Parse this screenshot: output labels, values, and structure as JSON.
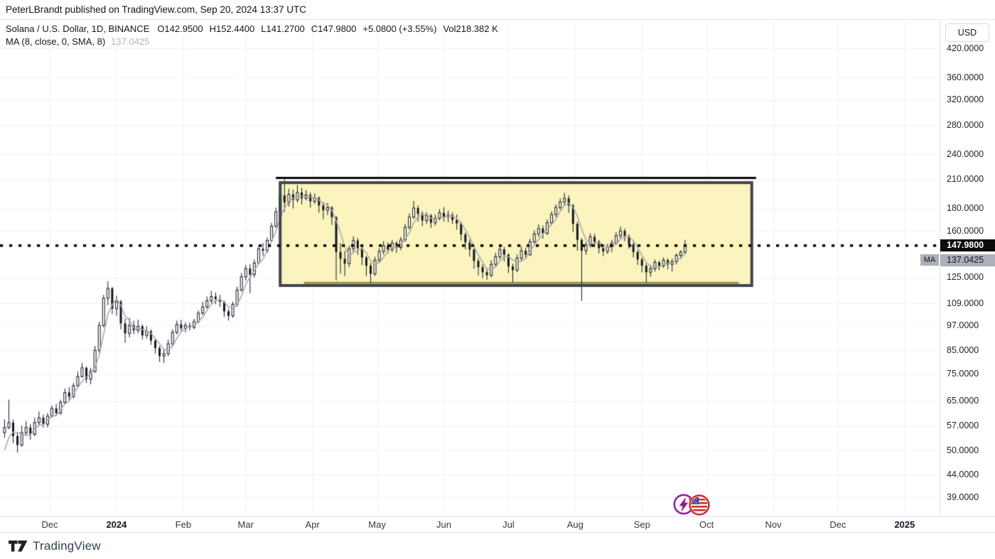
{
  "header": {
    "published_line": "PeterLBrandt published on TradingView.com, Sep 20, 2024 13:37 UTC"
  },
  "legend": {
    "symbol_title": "Solana / U.S. Dollar, 1D, BINANCE",
    "values": [
      "O142.9500",
      "H152.4400",
      "L141.2700",
      "C147.9800",
      "+5.0800 (+3.55%)",
      "Vol218.382 K"
    ],
    "indicator_label": "MA (8, close, 0, SMA, 8)",
    "indicator_value": "137.0425"
  },
  "price_axis": {
    "currency_button": "USD",
    "labels": [
      "420.0000",
      "360.0000",
      "320.0000",
      "280.0000",
      "240.0000",
      "210.0000",
      "180.0000",
      "160.0000",
      "125.0000",
      "109.0000",
      "97.0000",
      "85.0000",
      "75.0000",
      "65.0000",
      "57.0000",
      "50.0000",
      "44.0000",
      "39.0000"
    ],
    "label_values": [
      420,
      360,
      320,
      280,
      240,
      210,
      180,
      160,
      125,
      109,
      97,
      85,
      75,
      65,
      57,
      50,
      44,
      39
    ],
    "last_price_badge": {
      "text": "147.9800",
      "price": 147.98
    },
    "ma_badge": {
      "tag": "MA",
      "text": "137.0425",
      "price": 137.0425
    }
  },
  "time_axis": {
    "ticks": [
      {
        "label": "Dec",
        "day": 0,
        "bold": false
      },
      {
        "label": "2024",
        "day": 31,
        "bold": true
      },
      {
        "label": "Feb",
        "day": 62,
        "bold": false
      },
      {
        "label": "Mar",
        "day": 91,
        "bold": false
      },
      {
        "label": "Apr",
        "day": 122,
        "bold": false
      },
      {
        "label": "May",
        "day": 152,
        "bold": false
      },
      {
        "label": "Jun",
        "day": 183,
        "bold": false
      },
      {
        "label": "Jul",
        "day": 213,
        "bold": false
      },
      {
        "label": "Aug",
        "day": 244,
        "bold": false
      },
      {
        "label": "Sep",
        "day": 275,
        "bold": false
      },
      {
        "label": "Oct",
        "day": 305,
        "bold": false
      },
      {
        "label": "Nov",
        "day": 336,
        "bold": false
      },
      {
        "label": "Dec",
        "day": 366,
        "bold": false
      },
      {
        "label": "2025",
        "day": 397,
        "bold": true
      }
    ]
  },
  "footer": {
    "brand": "TradingView"
  },
  "chart_data": {
    "type": "candlestick",
    "title": "Solana / U.S. Dollar, 1D, BINANCE",
    "scale": "log",
    "price_axis_range": [
      37,
      450
    ],
    "grid": true,
    "last_bar": {
      "open": 142.95,
      "high": 152.44,
      "low": 141.27,
      "close": 147.98,
      "change": "+5.0800",
      "change_pct": "+3.55%",
      "volume": "218.382 K"
    },
    "moving_average": {
      "length": 8,
      "source": "close",
      "offset": 0,
      "type": "SMA",
      "current_value": 137.0425,
      "seed_closes": [
        40,
        44,
        48,
        52
      ]
    },
    "bars_per_point_days": 2,
    "candles": [
      [
        55,
        59,
        53.5,
        56.5
      ],
      [
        56.5,
        65.5,
        56,
        58
      ],
      [
        58,
        59,
        52,
        54
      ],
      [
        54,
        55,
        49.5,
        51.5
      ],
      [
        51.5,
        57,
        51,
        55
      ],
      [
        55,
        58.5,
        54,
        56.5
      ],
      [
        56.5,
        57.5,
        53,
        54.5
      ],
      [
        54.5,
        59.5,
        54,
        58
      ],
      [
        58,
        61.5,
        57,
        59.5
      ],
      [
        59.5,
        60.5,
        56.5,
        57.5
      ],
      [
        57.5,
        61,
        56.5,
        60
      ],
      [
        60,
        63.5,
        59.5,
        62.5
      ],
      [
        62.5,
        64,
        60,
        61
      ],
      [
        61,
        65.5,
        60.5,
        64.5
      ],
      [
        64.5,
        69.5,
        64,
        68
      ],
      [
        68,
        70,
        65,
        66.5
      ],
      [
        66.5,
        71.5,
        66,
        70.5
      ],
      [
        70.5,
        76,
        70,
        74
      ],
      [
        74,
        79.5,
        73.5,
        77.5
      ],
      [
        77.5,
        78,
        71.5,
        73
      ],
      [
        73,
        77.5,
        71,
        76
      ],
      [
        76,
        87,
        75.5,
        85
      ],
      [
        85,
        99,
        84,
        97
      ],
      [
        97,
        114,
        96,
        112
      ],
      [
        112,
        122.5,
        108,
        118
      ],
      [
        118,
        119,
        103,
        106
      ],
      [
        106,
        113.5,
        102,
        110
      ],
      [
        110,
        111,
        95,
        98
      ],
      [
        98,
        100.5,
        88.5,
        93
      ],
      [
        93,
        101,
        91,
        97
      ],
      [
        97,
        99.5,
        92.5,
        94.5
      ],
      [
        94.5,
        100,
        93,
        96.5
      ],
      [
        96.5,
        97.5,
        90,
        92
      ],
      [
        92,
        96.5,
        90.5,
        94
      ],
      [
        94,
        95,
        87.5,
        89.5
      ],
      [
        89.5,
        90.5,
        83.5,
        86
      ],
      [
        86,
        87,
        80,
        82.5
      ],
      [
        82.5,
        85.5,
        79.5,
        83.5
      ],
      [
        83.5,
        90,
        82.5,
        88
      ],
      [
        88,
        95,
        87,
        93.5
      ],
      [
        93.5,
        99.5,
        92.5,
        97.5
      ],
      [
        97.5,
        100,
        94,
        95.5
      ],
      [
        95.5,
        98.5,
        93.5,
        97
      ],
      [
        97,
        98.5,
        94.5,
        96
      ],
      [
        96,
        100.5,
        95,
        99
      ],
      [
        99,
        105,
        98,
        103.5
      ],
      [
        103.5,
        110,
        102.5,
        107
      ],
      [
        107,
        113,
        106,
        110.5
      ],
      [
        110.5,
        116.5,
        109,
        113
      ],
      [
        113,
        115.5,
        108.5,
        111.5
      ],
      [
        111.5,
        114,
        107,
        110
      ],
      [
        110,
        110.5,
        101.5,
        104.5
      ],
      [
        104.5,
        106,
        99.5,
        102
      ],
      [
        102,
        110,
        101,
        108.5
      ],
      [
        108.5,
        119,
        107,
        117
      ],
      [
        117,
        128,
        116,
        125.5
      ],
      [
        125.5,
        133.5,
        123,
        131
      ],
      [
        131,
        134,
        115,
        127
      ],
      [
        127,
        137.5,
        125,
        135
      ],
      [
        135,
        147.5,
        134,
        145.5
      ],
      [
        145.5,
        150,
        140,
        144
      ],
      [
        144,
        154.5,
        142.5,
        152
      ],
      [
        152,
        167,
        151,
        164
      ],
      [
        164,
        181,
        162.5,
        177
      ],
      [
        177,
        197,
        175,
        193
      ],
      [
        193,
        210.2,
        177,
        186
      ],
      [
        186,
        200,
        182,
        194
      ],
      [
        194,
        199,
        180,
        188.5
      ],
      [
        188.5,
        204,
        186,
        196
      ],
      [
        196,
        201,
        184,
        190
      ],
      [
        190,
        198.5,
        188,
        193.5
      ],
      [
        193.5,
        196,
        181,
        187
      ],
      [
        187,
        195,
        184.5,
        190.5
      ],
      [
        190.5,
        192,
        176,
        183
      ],
      [
        183,
        186.5,
        170,
        178.5
      ],
      [
        178.5,
        185.5,
        174,
        181
      ],
      [
        181,
        182.5,
        165,
        172
      ],
      [
        172,
        173,
        123,
        143
      ],
      [
        143,
        150,
        127.5,
        138
      ],
      [
        138,
        144,
        126,
        134.5
      ],
      [
        134.5,
        148,
        132,
        145.5
      ],
      [
        145.5,
        155.5,
        143,
        152
      ],
      [
        152,
        154,
        141,
        146
      ],
      [
        146,
        147.5,
        133.5,
        139
      ],
      [
        139,
        140,
        126,
        133
      ],
      [
        133,
        135,
        121.5,
        127.5
      ],
      [
        127.5,
        139.5,
        126,
        137
      ],
      [
        137,
        146,
        135,
        143.5
      ],
      [
        143.5,
        151.5,
        141,
        148
      ],
      [
        148,
        150.5,
        142,
        145
      ],
      [
        145,
        152.5,
        143,
        150
      ],
      [
        150,
        151.5,
        142.5,
        146.5
      ],
      [
        146.5,
        155,
        144.5,
        152.5
      ],
      [
        152.5,
        166,
        151,
        163
      ],
      [
        163,
        175.5,
        161,
        172
      ],
      [
        172,
        187.5,
        170.5,
        180.5
      ],
      [
        180.5,
        183,
        168,
        175
      ],
      [
        175,
        177.5,
        164,
        169
      ],
      [
        169,
        176.5,
        166,
        173.5
      ],
      [
        173.5,
        175,
        162.5,
        167
      ],
      [
        167,
        174.5,
        164.5,
        171
      ],
      [
        171,
        179.5,
        169,
        176
      ],
      [
        176,
        181.5,
        168,
        172.5
      ],
      [
        172.5,
        178,
        167.5,
        174
      ],
      [
        174,
        176.5,
        166,
        169.5
      ],
      [
        169.5,
        174.5,
        161,
        166.5
      ],
      [
        166.5,
        168,
        152,
        157
      ],
      [
        157,
        158.5,
        145,
        150.5
      ],
      [
        150.5,
        153,
        139.5,
        145
      ],
      [
        145,
        146,
        131,
        136.5
      ],
      [
        136.5,
        138.5,
        126.5,
        132
      ],
      [
        132,
        134,
        124.5,
        128.5
      ],
      [
        128.5,
        131,
        123.5,
        126.5
      ],
      [
        126.5,
        137,
        125,
        134
      ],
      [
        134,
        142.5,
        132,
        139.5
      ],
      [
        139.5,
        148,
        137.5,
        145
      ],
      [
        145,
        147,
        136,
        141
      ],
      [
        141,
        142,
        128,
        132.5
      ],
      [
        132.5,
        134.5,
        122,
        130
      ],
      [
        130,
        141,
        128.5,
        138.5
      ],
      [
        138.5,
        147.5,
        136.5,
        144
      ],
      [
        144,
        146.5,
        138,
        141
      ],
      [
        141,
        153.5,
        140,
        151
      ],
      [
        151,
        160.5,
        149.5,
        157.5
      ],
      [
        157.5,
        165.5,
        155,
        162
      ],
      [
        162,
        164.5,
        153.5,
        158
      ],
      [
        158,
        170,
        156.5,
        167
      ],
      [
        167,
        177.5,
        165,
        174.5
      ],
      [
        174.5,
        184,
        172,
        181
      ],
      [
        181,
        190,
        179,
        186.5
      ],
      [
        186.5,
        195.5,
        183,
        190
      ],
      [
        190,
        193,
        176,
        183
      ],
      [
        183,
        184.5,
        159,
        166
      ],
      [
        166,
        168,
        144,
        152.5
      ],
      [
        152.5,
        154,
        110.5,
        144
      ],
      [
        144,
        151,
        141,
        148.5
      ],
      [
        148.5,
        158,
        146.5,
        155
      ],
      [
        155,
        157.5,
        147,
        151
      ],
      [
        151,
        152.5,
        142,
        146
      ],
      [
        146,
        148,
        140,
        143.5
      ],
      [
        143.5,
        149.5,
        141.5,
        147
      ],
      [
        147,
        152.5,
        143,
        150
      ],
      [
        150,
        159,
        148.5,
        156
      ],
      [
        156,
        163.5,
        154,
        160
      ],
      [
        160,
        162,
        151.5,
        155.5
      ],
      [
        155.5,
        157,
        145.5,
        149
      ],
      [
        149,
        150.5,
        139,
        143
      ],
      [
        143,
        144.5,
        133.5,
        137.5
      ],
      [
        137.5,
        139,
        128.5,
        133
      ],
      [
        133,
        134.5,
        121.8,
        128.5
      ],
      [
        128.5,
        133.5,
        125.5,
        131
      ],
      [
        131,
        137.5,
        129,
        135.5
      ],
      [
        135.5,
        136.5,
        130,
        133
      ],
      [
        133,
        139,
        131.5,
        137
      ],
      [
        137,
        138.5,
        130.5,
        134
      ],
      [
        134,
        138,
        129,
        136
      ],
      [
        136,
        142,
        134,
        140.5
      ],
      [
        140.5,
        144.5,
        138,
        142.95
      ],
      [
        142.95,
        152.44,
        141.27,
        147.98
      ]
    ],
    "drawings": {
      "consolidation_box": {
        "price_top": 206.5,
        "price_bottom": 119.8,
        "from_day": 107,
        "to_day": 326
      },
      "resistance_line": {
        "price": 211.8,
        "from_day": 105,
        "to_day": 328
      },
      "support_line": {
        "price": 121.5,
        "from_day": 118,
        "to_day": 320
      },
      "dotted_price_line": {
        "price": 147.98
      }
    },
    "colors": {
      "up_fill": "#FFFFFF",
      "down_fill": "#131722",
      "outline": "#131722",
      "ma_line": "#A9ACB3",
      "grid": "#EFF2F6",
      "background": "#FFFFFF",
      "box_fill": "#FBF4BE",
      "box_border": "#40444D",
      "resistance": "#0A0A0A",
      "support": "#97914A",
      "dotted": "#000000",
      "last_badge_bg": "#0B0B0B",
      "ma_badge_bg": "#ADB0B8"
    }
  },
  "stickers": [
    {
      "name": "lightning"
    },
    {
      "name": "us-flag-heart"
    }
  ]
}
